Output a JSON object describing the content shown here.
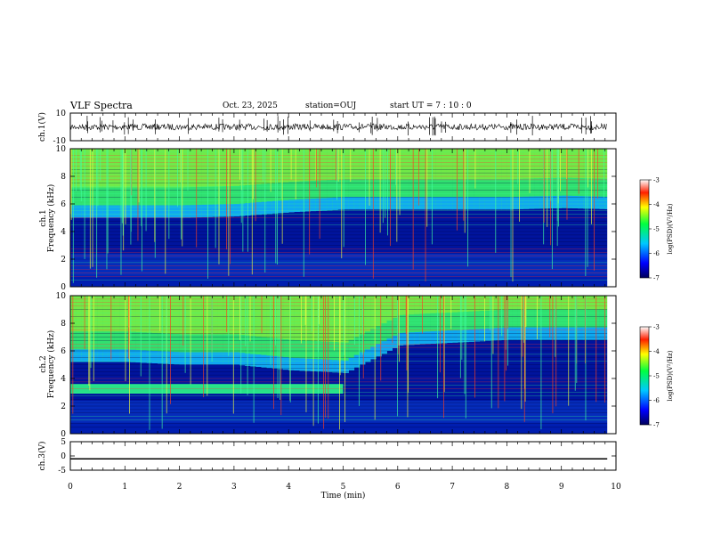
{
  "header": {
    "title": "VLF Spectra",
    "date": "Oct. 23, 2025",
    "station": "station=OUJ",
    "start": "start  UT =   7 : 10 : 0"
  },
  "chart_data": [
    {
      "type": "line",
      "panel": "ch1-waveform",
      "ylabel": "ch.1(V)",
      "ylim": [
        -10,
        10
      ],
      "yticks": [
        "10",
        "-10"
      ],
      "baseline": 0,
      "description_series": "noisy waveform around 0 V with spikes"
    },
    {
      "type": "heatmap",
      "panel": "ch1-spectrogram",
      "ylabel": "Frequency (kHz)",
      "channel": "ch.1",
      "ylim": [
        0,
        10
      ],
      "yticks": [
        "0",
        "2",
        "4",
        "6",
        "8",
        "10"
      ],
      "colorbar": {
        "label": "log(PSD)(V²/Hz)",
        "range": [
          -7,
          -3
        ],
        "ticks": [
          "-3",
          "-4",
          "-5",
          "-6",
          "-7"
        ]
      },
      "boundary_khz": [
        5.0,
        5.0,
        5.0,
        5.1,
        5.4,
        5.6,
        5.6,
        5.6,
        5.6,
        5.7,
        5.6
      ]
    },
    {
      "type": "heatmap",
      "panel": "ch2-spectrogram",
      "ylabel": "Frequency (kHz)",
      "channel": "ch.2",
      "ylim": [
        0,
        10
      ],
      "yticks": [
        "0",
        "2",
        "4",
        "6",
        "8",
        "10"
      ],
      "colorbar": {
        "label": "log(PSD)(V²/Hz)",
        "range": [
          -7,
          -3
        ],
        "ticks": [
          "-3",
          "-4",
          "-5",
          "-6",
          "-7"
        ]
      },
      "boundary_khz": [
        5.2,
        5.2,
        5.0,
        5.0,
        4.6,
        4.4,
        6.4,
        6.6,
        6.8,
        6.8,
        6.8
      ],
      "band_3khz_end_min": 5.0
    },
    {
      "type": "line",
      "panel": "ch3-waveform",
      "ylabel": "ch.3(V)",
      "ylim": [
        -5,
        5
      ],
      "yticks": [
        "5",
        "0",
        "-5"
      ],
      "constant_value": -1
    }
  ],
  "xaxis": {
    "label": "Time (min)",
    "range": [
      0,
      10
    ],
    "ticks": [
      "0",
      "1",
      "2",
      "3",
      "4",
      "5",
      "6",
      "7",
      "8",
      "9",
      "10"
    ]
  },
  "colors": {
    "axis": "#000000",
    "background": "#ffffff"
  }
}
